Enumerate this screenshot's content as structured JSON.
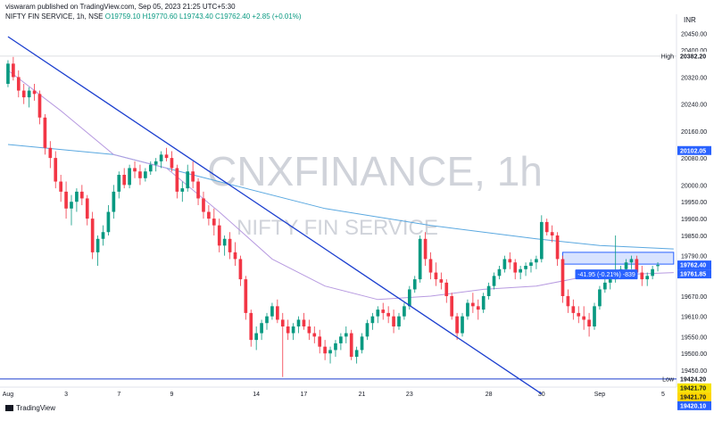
{
  "header": {
    "publisher": "viswaram published on TradingView.com, Sep 05, 2023 21:25 UTC+5:30",
    "symbol": "NIFTY FIN SERVICE, 1h, NSE",
    "open": "O19759.10",
    "high": "H19770.60",
    "low": "L19743.40",
    "close": "C19762.40",
    "change": "+2.85 (+0.01%)"
  },
  "currency": "INR",
  "watermark": {
    "ticker": "CNXFINANCE, 1h",
    "name": "NIFTY FIN SERVICE"
  },
  "footer": "TradingView",
  "colors": {
    "up": "#089981",
    "down": "#f23645",
    "trendline": "#1c3fcf",
    "ma_slow": "#5aa8e0",
    "ma_fast": "#b79ae0",
    "watermark": "#d0d3da",
    "highlight": "#2962ff"
  },
  "chart_data": {
    "type": "candlestick",
    "ylim": [
      19400,
      20480
    ],
    "y_ticks": [
      20450,
      20400,
      20320,
      20240,
      20160,
      20080,
      20000,
      19950,
      19900,
      19850,
      19790,
      19670,
      19610,
      19550,
      19500,
      19450
    ],
    "x_tick_labels": [
      "Aug",
      "3",
      "7",
      "9",
      "14",
      "17",
      "21",
      "23",
      "28",
      "30",
      "Sep",
      "5"
    ],
    "x_tick_index": [
      0,
      11,
      21,
      31,
      47,
      56,
      67,
      76,
      91,
      101,
      112,
      124
    ],
    "candles": [
      [
        20300,
        20370,
        20290,
        20360
      ],
      [
        20360,
        20380,
        20310,
        20320
      ],
      [
        20320,
        20340,
        20260,
        20280
      ],
      [
        20280,
        20300,
        20240,
        20260
      ],
      [
        20260,
        20290,
        20230,
        20280
      ],
      [
        20280,
        20300,
        20250,
        20270
      ],
      [
        20270,
        20280,
        20180,
        20200
      ],
      [
        20200,
        20210,
        20090,
        20110
      ],
      [
        20110,
        20130,
        20050,
        20080
      ],
      [
        20080,
        20100,
        19990,
        20010
      ],
      [
        20010,
        20030,
        19950,
        19980
      ],
      [
        19980,
        20010,
        19900,
        19930
      ],
      [
        19930,
        19970,
        19880,
        19950
      ],
      [
        19950,
        19990,
        19920,
        19980
      ],
      [
        19980,
        20000,
        19940,
        19960
      ],
      [
        19960,
        19970,
        19880,
        19900
      ],
      [
        19900,
        19920,
        19780,
        19800
      ],
      [
        19800,
        19850,
        19760,
        19840
      ],
      [
        19840,
        19880,
        19820,
        19860
      ],
      [
        19860,
        19940,
        19850,
        19920
      ],
      [
        19920,
        20000,
        19900,
        19980
      ],
      [
        19980,
        20040,
        19960,
        20030
      ],
      [
        20030,
        20050,
        19990,
        20000
      ],
      [
        20000,
        20060,
        19990,
        20050
      ],
      [
        20050,
        20070,
        20020,
        20040
      ],
      [
        20040,
        20060,
        20000,
        20020
      ],
      [
        20020,
        20050,
        20010,
        20040
      ],
      [
        20040,
        20070,
        20030,
        20060
      ],
      [
        20060,
        20080,
        20040,
        20070
      ],
      [
        20070,
        20100,
        20050,
        20090
      ],
      [
        20090,
        20110,
        20070,
        20080
      ],
      [
        20080,
        20100,
        20040,
        20050
      ],
      [
        20050,
        20060,
        19960,
        19980
      ],
      [
        19980,
        20010,
        19950,
        19990
      ],
      [
        19990,
        20060,
        19980,
        20040
      ],
      [
        20040,
        20070,
        19990,
        20010
      ],
      [
        20010,
        20020,
        19940,
        19960
      ],
      [
        19960,
        19980,
        19900,
        19920
      ],
      [
        19920,
        19940,
        19880,
        19900
      ],
      [
        19900,
        19930,
        19850,
        19880
      ],
      [
        19880,
        19900,
        19800,
        19820
      ],
      [
        19820,
        19850,
        19790,
        19840
      ],
      [
        19840,
        19860,
        19780,
        19800
      ],
      [
        19800,
        19830,
        19760,
        19780
      ],
      [
        19780,
        19790,
        19700,
        19720
      ],
      [
        19720,
        19730,
        19600,
        19620
      ],
      [
        19620,
        19630,
        19520,
        19540
      ],
      [
        19540,
        19580,
        19510,
        19560
      ],
      [
        19560,
        19600,
        19540,
        19590
      ],
      [
        19590,
        19620,
        19570,
        19610
      ],
      [
        19610,
        19650,
        19600,
        19640
      ],
      [
        19640,
        19660,
        19590,
        19600
      ],
      [
        19600,
        19620,
        19430,
        19580
      ],
      [
        19580,
        19600,
        19540,
        19560
      ],
      [
        19560,
        19590,
        19540,
        19580
      ],
      [
        19580,
        19610,
        19560,
        19600
      ],
      [
        19600,
        19620,
        19570,
        19580
      ],
      [
        19580,
        19600,
        19540,
        19560
      ],
      [
        19560,
        19580,
        19530,
        19550
      ],
      [
        19550,
        19570,
        19500,
        19520
      ],
      [
        19520,
        19540,
        19480,
        19500
      ],
      [
        19500,
        19520,
        19470,
        19510
      ],
      [
        19510,
        19540,
        19490,
        19530
      ],
      [
        19530,
        19560,
        19510,
        19550
      ],
      [
        19550,
        19580,
        19530,
        19560
      ],
      [
        19560,
        19570,
        19480,
        19490
      ],
      [
        19490,
        19520,
        19470,
        19510
      ],
      [
        19510,
        19560,
        19500,
        19550
      ],
      [
        19550,
        19600,
        19540,
        19590
      ],
      [
        19590,
        19620,
        19570,
        19610
      ],
      [
        19610,
        19640,
        19590,
        19630
      ],
      [
        19630,
        19650,
        19600,
        19620
      ],
      [
        19620,
        19640,
        19590,
        19610
      ],
      [
        19610,
        19630,
        19560,
        19580
      ],
      [
        19580,
        19620,
        19570,
        19610
      ],
      [
        19610,
        19650,
        19600,
        19640
      ],
      [
        19640,
        19700,
        19630,
        19690
      ],
      [
        19690,
        19730,
        19680,
        19720
      ],
      [
        19720,
        19850,
        19710,
        19840
      ],
      [
        19840,
        19860,
        19760,
        19780
      ],
      [
        19780,
        19800,
        19720,
        19740
      ],
      [
        19740,
        19770,
        19700,
        19720
      ],
      [
        19720,
        19740,
        19690,
        19710
      ],
      [
        19710,
        19720,
        19650,
        19670
      ],
      [
        19670,
        19680,
        19600,
        19610
      ],
      [
        19610,
        19620,
        19540,
        19560
      ],
      [
        19560,
        19620,
        19550,
        19610
      ],
      [
        19610,
        19660,
        19600,
        19650
      ],
      [
        19650,
        19680,
        19620,
        19640
      ],
      [
        19640,
        19660,
        19600,
        19630
      ],
      [
        19630,
        19680,
        19620,
        19670
      ],
      [
        19670,
        19710,
        19660,
        19700
      ],
      [
        19700,
        19740,
        19690,
        19730
      ],
      [
        19730,
        19760,
        19720,
        19750
      ],
      [
        19750,
        19790,
        19740,
        19780
      ],
      [
        19780,
        19800,
        19750,
        19770
      ],
      [
        19770,
        19780,
        19720,
        19740
      ],
      [
        19740,
        19760,
        19720,
        19750
      ],
      [
        19750,
        19770,
        19730,
        19760
      ],
      [
        19760,
        19780,
        19740,
        19770
      ],
      [
        19770,
        19790,
        19750,
        19780
      ],
      [
        19780,
        19910,
        19770,
        19890
      ],
      [
        19890,
        19900,
        19850,
        19860
      ],
      [
        19860,
        19880,
        19830,
        19850
      ],
      [
        19850,
        19860,
        19760,
        19780
      ],
      [
        19780,
        19790,
        19650,
        19670
      ],
      [
        19670,
        19690,
        19620,
        19640
      ],
      [
        19640,
        19660,
        19600,
        19620
      ],
      [
        19620,
        19640,
        19590,
        19610
      ],
      [
        19610,
        19640,
        19570,
        19600
      ],
      [
        19600,
        19620,
        19550,
        19580
      ],
      [
        19580,
        19650,
        19570,
        19640
      ],
      [
        19640,
        19700,
        19630,
        19690
      ],
      [
        19690,
        19720,
        19680,
        19710
      ],
      [
        19710,
        19740,
        19690,
        19720
      ],
      [
        19720,
        19850,
        19710,
        19730
      ],
      [
        19730,
        19760,
        19720,
        19750
      ],
      [
        19750,
        19780,
        19740,
        19770
      ],
      [
        19770,
        19790,
        19750,
        19780
      ],
      [
        19780,
        19790,
        19720,
        19740
      ],
      [
        19740,
        19760,
        19700,
        19720
      ],
      [
        19720,
        19740,
        19700,
        19730
      ],
      [
        19730,
        19760,
        19720,
        19750
      ],
      [
        19759.1,
        19770.6,
        19743.4,
        19762.4
      ]
    ],
    "ma_slow": [
      [
        0,
        20120
      ],
      [
        20,
        20090
      ],
      [
        40,
        20010
      ],
      [
        60,
        19930
      ],
      [
        80,
        19880
      ],
      [
        100,
        19840
      ],
      [
        112,
        19820
      ],
      [
        126,
        19810
      ]
    ],
    "ma_fast": [
      [
        0,
        20340
      ],
      [
        10,
        20220
      ],
      [
        20,
        20090
      ],
      [
        30,
        20050
      ],
      [
        40,
        19920
      ],
      [
        50,
        19780
      ],
      [
        60,
        19700
      ],
      [
        70,
        19660
      ],
      [
        80,
        19670
      ],
      [
        90,
        19690
      ],
      [
        100,
        19700
      ],
      [
        110,
        19730
      ],
      [
        126,
        19740
      ]
    ],
    "trendline": [
      [
        0,
        20440
      ],
      [
        101,
        19380
      ]
    ],
    "support_line": 19424.2,
    "high_line": 20382.2,
    "selection_box": [
      105,
      126,
      19765,
      19800
    ],
    "measure_label": "-41.95 (-0.21%) -839",
    "price_labels": [
      {
        "text": "High",
        "value": 20382.2,
        "label": "20382.20",
        "kind": "plain"
      },
      {
        "text": "",
        "value": 20102.05,
        "label": "20102.05",
        "kind": "blue"
      },
      {
        "text": "",
        "value": 19762.4,
        "label": "19762.40",
        "kind": "blue"
      },
      {
        "text": "",
        "value": 19761.85,
        "label": "19761.85",
        "kind": "blue"
      },
      {
        "text": "Low",
        "value": 19424.2,
        "label": "19424.20",
        "kind": "plain"
      },
      {
        "text": "",
        "value": 19421.7,
        "label": "19421.70",
        "kind": "yellow"
      },
      {
        "text": "",
        "value": 19421.7,
        "label": "19421.70",
        "kind": "yellow2"
      },
      {
        "text": "",
        "value": 19420.1,
        "label": "19420.10",
        "kind": "blue"
      }
    ]
  }
}
